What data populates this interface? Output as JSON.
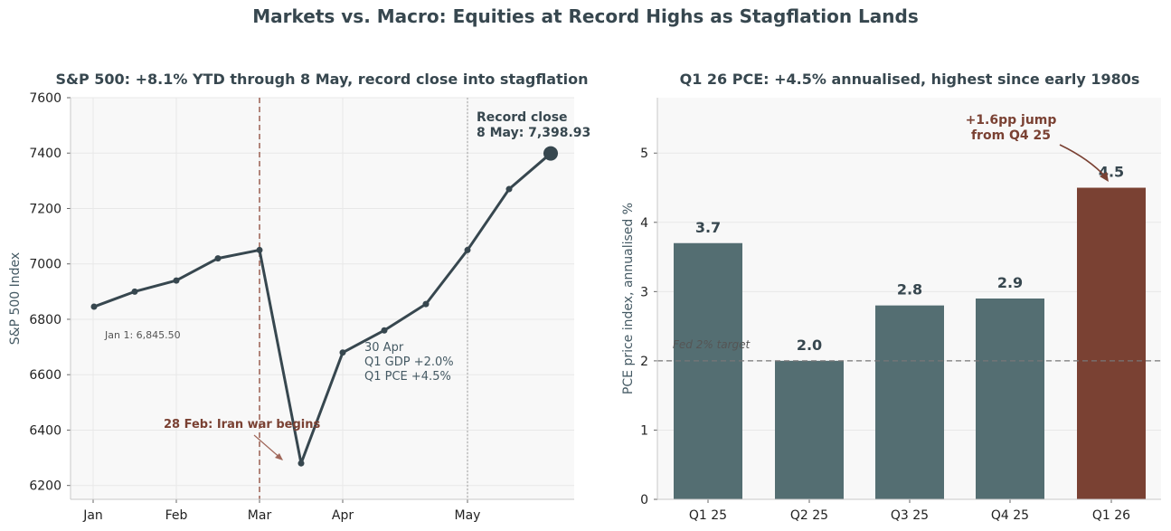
{
  "figure": {
    "title": "Markets vs. Macro: Equities at Record Highs as Stagflation Lands"
  },
  "chart_data": [
    {
      "type": "line",
      "title": "S&P 500: +8.1% YTD through 8 May, record close into stagflation",
      "ylabel": "S&P 500 Index",
      "xlabel": "",
      "ylim": [
        6150,
        7600
      ],
      "yticks": [
        6200,
        6400,
        6600,
        6800,
        7000,
        7200,
        7400,
        7600
      ],
      "xtick_labels": [
        "Jan",
        "Feb",
        "Mar",
        "Apr",
        "May"
      ],
      "grid": true,
      "color": "#37474f",
      "series": [
        {
          "values": [
            6845.5,
            6900,
            6940,
            7020,
            7050,
            6280,
            6680,
            6760,
            6855,
            7050,
            7270,
            7398.93
          ]
        }
      ],
      "annotations": {
        "start": "Jan 1: 6,845.50",
        "war": "28 Feb: Iran war begins",
        "data_release": [
          "30 Apr",
          "Q1 GDP +2.0%",
          "Q1 PCE +4.5%"
        ],
        "record": [
          "Record close",
          "8 May: 7,398.93"
        ]
      },
      "event_line_color": "#a0675a"
    },
    {
      "type": "bar",
      "title": "Q1 26 PCE: +4.5% annualised, highest since early 1980s",
      "ylabel": "PCE price index, annualised %",
      "xlabel": "",
      "categories": [
        "Q1 25",
        "Q2 25",
        "Q3 25",
        "Q4 25",
        "Q1 26"
      ],
      "values": [
        3.7,
        2.0,
        2.8,
        2.9,
        4.5
      ],
      "value_labels": [
        "3.7",
        "2.0",
        "2.8",
        "2.9",
        "4.5"
      ],
      "ylim": [
        0,
        5.8
      ],
      "yticks": [
        0,
        1,
        2,
        3,
        4,
        5
      ],
      "grid": true,
      "bar_color": "#546e72",
      "highlight_color": "#7a4133",
      "reference_line": {
        "value": 2.0,
        "label": "Fed 2% target"
      },
      "annotation": [
        "+1.6pp jump",
        "from Q4 25"
      ]
    }
  ]
}
